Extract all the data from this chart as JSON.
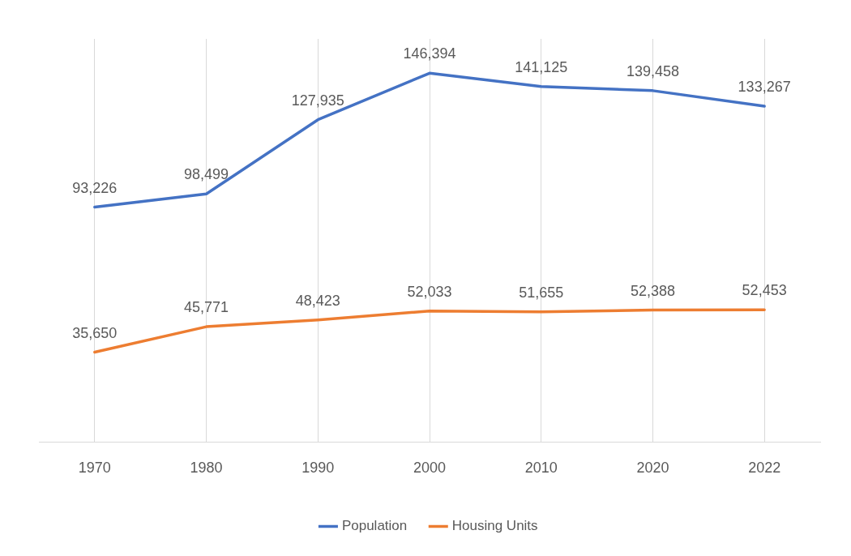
{
  "chart_data": {
    "type": "line",
    "categories": [
      "1970",
      "1980",
      "1990",
      "2000",
      "2010",
      "2020",
      "2022"
    ],
    "series": [
      {
        "name": "Population",
        "color": "#4472c4",
        "values": [
          93226,
          98499,
          127935,
          146394,
          141125,
          139458,
          133267
        ],
        "value_labels": [
          "93,226",
          "98,499",
          "127,935",
          "146,394",
          "141,125",
          "139,458",
          "133,267"
        ]
      },
      {
        "name": "Housing Units",
        "color": "#ed7d31",
        "values": [
          35650,
          45771,
          48423,
          52033,
          51655,
          52388,
          52453
        ],
        "value_labels": [
          "35,650",
          "45,771",
          "48,423",
          "52,033",
          "51,655",
          "52,388",
          "52,453"
        ]
      }
    ],
    "grid": "x",
    "legend": "bottom",
    "marker": "none",
    "line_style": "solid",
    "tick_labels": "x"
  }
}
